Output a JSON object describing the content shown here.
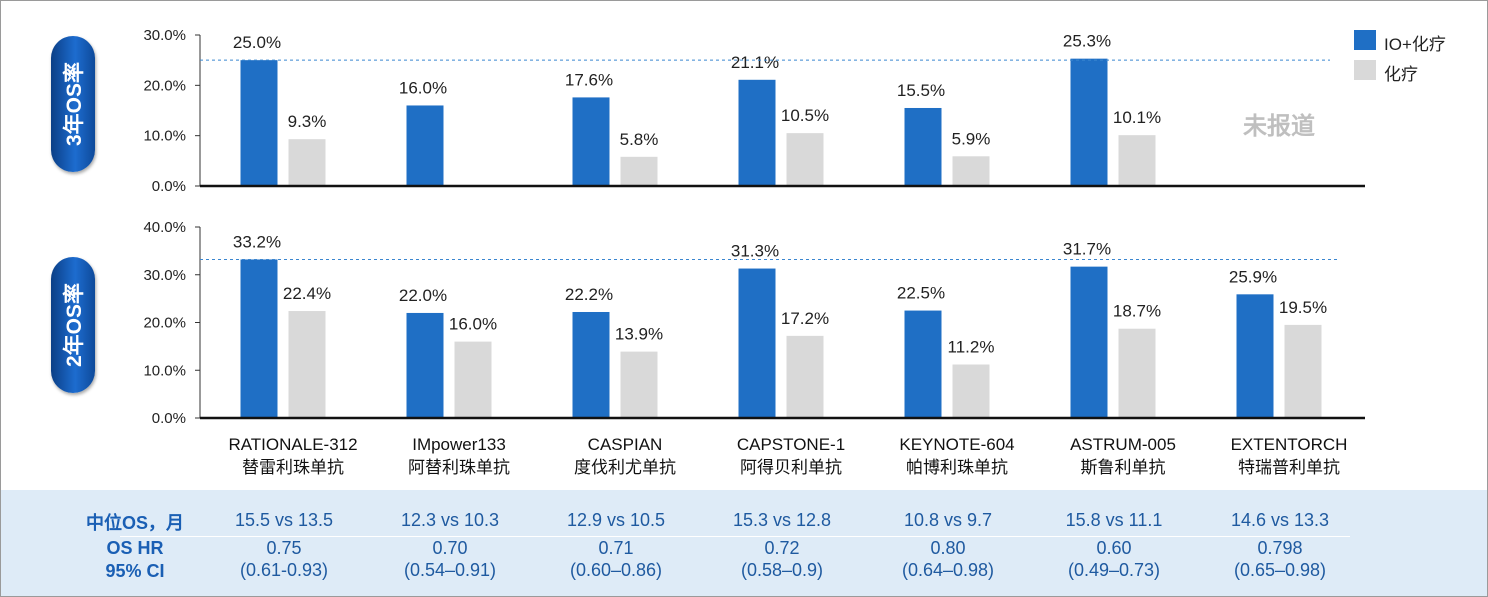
{
  "legend": {
    "io_label": "IO+化疗",
    "chemo_label": "化疗",
    "io_color": "#1f6fc5",
    "chemo_color": "#d9d9d9"
  },
  "panel_labels": {
    "top": "3年OS率",
    "bottom": "2年OS率"
  },
  "unreported_label": "未报道",
  "chart_data": [
    {
      "type": "bar",
      "title": "3年OS率",
      "categories": [
        "RATIONALE-312",
        "IMpower133",
        "CASPIAN",
        "CAPSTONE-1",
        "KEYNOTE-604",
        "ASTRUM-005",
        "EXTENTORCH"
      ],
      "series": [
        {
          "name": "IO+化疗",
          "values": [
            25.0,
            16.0,
            17.6,
            21.1,
            15.5,
            25.3,
            null
          ],
          "labels": [
            "25.0%",
            "16.0%",
            "17.6%",
            "21.1%",
            "15.5%",
            "25.3%",
            ""
          ]
        },
        {
          "name": "化疗",
          "values": [
            9.3,
            null,
            5.8,
            10.5,
            5.9,
            10.1,
            null
          ],
          "labels": [
            "9.3%",
            "",
            "5.8%",
            "10.5%",
            "5.9%",
            "10.1%",
            ""
          ]
        }
      ],
      "ylim": [
        0,
        30
      ],
      "yticks": [
        "0.0%",
        "10.0%",
        "20.0%",
        "30.0%"
      ],
      "reference_line": 25.0
    },
    {
      "type": "bar",
      "title": "2年OS率",
      "categories": [
        "RATIONALE-312",
        "IMpower133",
        "CASPIAN",
        "CAPSTONE-1",
        "KEYNOTE-604",
        "ASTRUM-005",
        "EXTENTORCH"
      ],
      "series": [
        {
          "name": "IO+化疗",
          "values": [
            33.2,
            22.0,
            22.2,
            31.3,
            22.5,
            31.7,
            25.9
          ],
          "labels": [
            "33.2%",
            "22.0%",
            "22.2%",
            "31.3%",
            "22.5%",
            "31.7%",
            "25.9%"
          ]
        },
        {
          "name": "化疗",
          "values": [
            22.4,
            16.0,
            13.9,
            17.2,
            11.2,
            18.7,
            19.5
          ],
          "labels": [
            "22.4%",
            "16.0%",
            "13.9%",
            "17.2%",
            "11.2%",
            "18.7%",
            "19.5%"
          ]
        }
      ],
      "ylim": [
        0,
        40
      ],
      "yticks": [
        "0.0%",
        "10.0%",
        "20.0%",
        "30.0%",
        "40.0%"
      ],
      "reference_line": 33.2
    }
  ],
  "trials": [
    {
      "name": "RATIONALE-312",
      "drug": "替雷利珠单抗",
      "median_os": "15.5 vs 13.5",
      "hr": "0.75",
      "ci": "(0.61-0.93)"
    },
    {
      "name": "IMpower133",
      "drug": "阿替利珠单抗",
      "median_os": "12.3 vs 10.3",
      "hr": "0.70",
      "ci": "(0.54–0.91)"
    },
    {
      "name": "CASPIAN",
      "drug": "度伐利尤单抗",
      "median_os": "12.9 vs 10.5",
      "hr": "0.71",
      "ci": "(0.60–0.86)"
    },
    {
      "name": "CAPSTONE-1",
      "drug": "阿得贝利单抗",
      "median_os": "15.3 vs 12.8",
      "hr": "0.72",
      "ci": "(0.58–0.9)"
    },
    {
      "name": "KEYNOTE-604",
      "drug": "帕博利珠单抗",
      "median_os": "10.8 vs 9.7",
      "hr": "0.80",
      "ci": "(0.64–0.98)"
    },
    {
      "name": "ASTRUM-005",
      "drug": "斯鲁利单抗",
      "median_os": "15.8 vs 11.1",
      "hr": "0.60",
      "ci": "(0.49–0.73)"
    },
    {
      "name": "EXTENTORCH",
      "drug": "特瑞普利单抗",
      "median_os": "14.6 vs 13.3",
      "hr": "0.798",
      "ci": "(0.65–0.98)"
    }
  ],
  "table_labels": {
    "median_os": "中位OS，月",
    "hr": "OS HR",
    "ci": "95% CI"
  }
}
